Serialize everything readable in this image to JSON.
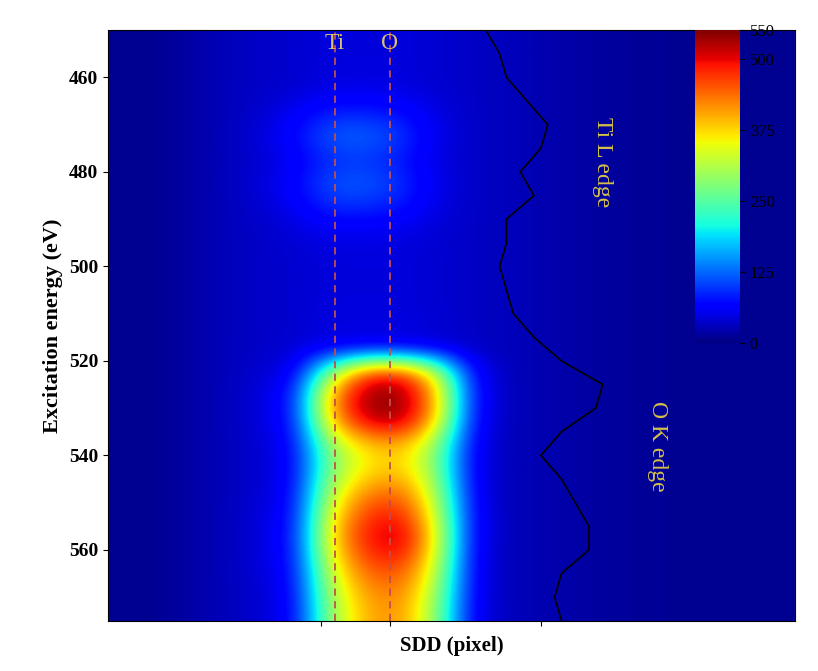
{
  "chart_data": {
    "type": "heatmap",
    "xlabel": "SDD (pixel)",
    "ylabel": "Excitation energy (eV)",
    "tick_labels": "y",
    "xlim": [
      0,
      100
    ],
    "ylim": [
      575,
      450
    ],
    "xticks": [
      31,
      41,
      63
    ],
    "yticks": [
      460,
      480,
      500,
      520,
      540,
      560
    ],
    "x_bins": [
      0,
      5,
      10,
      15,
      20,
      25,
      30,
      35,
      40,
      45,
      50,
      55,
      60,
      65,
      70,
      75,
      80,
      85,
      90,
      95,
      100
    ],
    "y_bins": [
      450,
      455,
      460,
      465,
      470,
      475,
      480,
      485,
      490,
      495,
      500,
      505,
      510,
      515,
      520,
      525,
      530,
      535,
      540,
      545,
      550,
      555,
      560,
      565,
      570,
      575
    ],
    "cells": [
      [
        10,
        10,
        20,
        30,
        35,
        40,
        45,
        45,
        45,
        40,
        35,
        30,
        25,
        20,
        15,
        12,
        10,
        10,
        10,
        10
      ],
      [
        10,
        10,
        20,
        30,
        35,
        40,
        45,
        45,
        45,
        40,
        35,
        30,
        25,
        20,
        15,
        12,
        10,
        10,
        10,
        10
      ],
      [
        10,
        10,
        20,
        30,
        35,
        40,
        50,
        50,
        48,
        40,
        35,
        30,
        25,
        20,
        15,
        12,
        10,
        10,
        10,
        10
      ],
      [
        10,
        10,
        20,
        30,
        40,
        60,
        85,
        85,
        75,
        50,
        35,
        30,
        25,
        20,
        15,
        12,
        10,
        10,
        10,
        10
      ],
      [
        10,
        10,
        20,
        30,
        45,
        75,
        120,
        125,
        100,
        55,
        35,
        30,
        25,
        20,
        15,
        12,
        10,
        10,
        10,
        10
      ],
      [
        10,
        10,
        20,
        30,
        40,
        60,
        90,
        95,
        80,
        50,
        35,
        30,
        25,
        20,
        15,
        12,
        10,
        10,
        10,
        10
      ],
      [
        10,
        10,
        20,
        30,
        45,
        70,
        115,
        120,
        95,
        55,
        35,
        30,
        25,
        20,
        15,
        12,
        10,
        10,
        10,
        10
      ],
      [
        10,
        10,
        20,
        30,
        40,
        60,
        90,
        90,
        80,
        50,
        35,
        30,
        25,
        20,
        15,
        12,
        10,
        10,
        10,
        10
      ],
      [
        10,
        10,
        20,
        30,
        35,
        45,
        55,
        55,
        50,
        42,
        35,
        30,
        25,
        20,
        15,
        12,
        10,
        10,
        10,
        10
      ],
      [
        10,
        10,
        20,
        30,
        35,
        40,
        45,
        45,
        45,
        40,
        35,
        30,
        25,
        20,
        15,
        12,
        10,
        10,
        10,
        10
      ],
      [
        10,
        10,
        20,
        30,
        35,
        40,
        45,
        45,
        45,
        40,
        35,
        30,
        25,
        20,
        15,
        12,
        10,
        10,
        10,
        10
      ],
      [
        10,
        10,
        20,
        30,
        35,
        40,
        45,
        45,
        45,
        40,
        35,
        30,
        25,
        20,
        15,
        12,
        10,
        10,
        10,
        10
      ],
      [
        10,
        10,
        20,
        30,
        35,
        40,
        48,
        48,
        48,
        42,
        35,
        30,
        25,
        20,
        15,
        12,
        10,
        10,
        10,
        10
      ],
      [
        10,
        10,
        20,
        30,
        35,
        42,
        50,
        52,
        50,
        44,
        35,
        30,
        25,
        20,
        15,
        12,
        10,
        10,
        10,
        10
      ],
      [
        10,
        10,
        20,
        30,
        40,
        60,
        300,
        480,
        500,
        350,
        80,
        30,
        25,
        20,
        15,
        12,
        10,
        10,
        10,
        10
      ],
      [
        10,
        10,
        20,
        30,
        45,
        90,
        420,
        540,
        550,
        420,
        90,
        30,
        25,
        20,
        15,
        12,
        10,
        10,
        10,
        10
      ],
      [
        10,
        10,
        20,
        30,
        45,
        85,
        400,
        520,
        540,
        400,
        85,
        30,
        25,
        20,
        15,
        12,
        10,
        10,
        10,
        10
      ],
      [
        10,
        10,
        20,
        30,
        40,
        75,
        300,
        380,
        400,
        300,
        70,
        30,
        25,
        20,
        15,
        12,
        10,
        10,
        10,
        10
      ],
      [
        10,
        10,
        20,
        30,
        40,
        70,
        280,
        360,
        380,
        290,
        65,
        30,
        25,
        20,
        15,
        12,
        10,
        10,
        10,
        10
      ],
      [
        10,
        10,
        20,
        30,
        40,
        75,
        320,
        420,
        440,
        320,
        70,
        30,
        25,
        20,
        15,
        12,
        10,
        10,
        10,
        10
      ],
      [
        10,
        10,
        20,
        30,
        45,
        80,
        360,
        470,
        490,
        350,
        75,
        30,
        25,
        20,
        15,
        12,
        10,
        10,
        10,
        10
      ],
      [
        10,
        10,
        20,
        30,
        45,
        85,
        380,
        490,
        530,
        370,
        75,
        30,
        25,
        20,
        15,
        12,
        10,
        10,
        10,
        10
      ],
      [
        10,
        10,
        20,
        30,
        45,
        80,
        350,
        460,
        480,
        350,
        70,
        30,
        25,
        20,
        15,
        12,
        10,
        10,
        10,
        10
      ],
      [
        10,
        10,
        20,
        30,
        40,
        75,
        320,
        420,
        440,
        320,
        70,
        30,
        25,
        20,
        15,
        12,
        10,
        10,
        10,
        10
      ],
      [
        10,
        10,
        20,
        30,
        40,
        70,
        300,
        400,
        420,
        300,
        65,
        30,
        25,
        20,
        15,
        12,
        10,
        10,
        10,
        10
      ]
    ],
    "colorbar_lim": [
      0,
      550
    ],
    "colorbar_ticks": [
      0,
      125,
      250,
      375,
      500,
      550
    ],
    "lines": [
      {
        "label": "Ti",
        "x": 33
      },
      {
        "label": "O",
        "x": 41
      }
    ],
    "spectrum": {
      "energy": [
        450,
        455,
        460,
        465,
        470,
        475,
        480,
        485,
        490,
        495,
        500,
        505,
        510,
        515,
        520,
        525,
        530,
        535,
        540,
        545,
        550,
        555,
        560,
        565,
        570,
        575
      ],
      "position": [
        55,
        57,
        58,
        61,
        64,
        63,
        60,
        62,
        58,
        58,
        57,
        58,
        59,
        62,
        66,
        72,
        71,
        66,
        63,
        66,
        68,
        70,
        70,
        66,
        65,
        66
      ],
      "color": "#000000"
    },
    "annotations": [
      {
        "text": "Ti L edge",
        "x": 72,
        "y": 478
      },
      {
        "text": "O K edge",
        "x": 80,
        "y": 538
      }
    ]
  }
}
